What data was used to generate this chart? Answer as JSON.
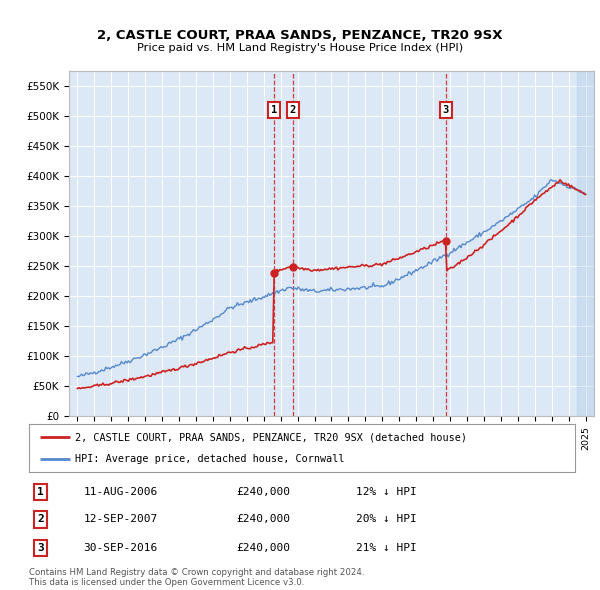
{
  "title1": "2, CASTLE COURT, PRAA SANDS, PENZANCE, TR20 9SX",
  "title2": "Price paid vs. HM Land Registry's House Price Index (HPI)",
  "background_color": "#ffffff",
  "plot_bg_color": "#dce8f5",
  "grid_color": "#ffffff",
  "hpi_color": "#5588cc",
  "price_color": "#cc2222",
  "transactions": [
    {
      "label": "1",
      "date": "11-AUG-2006",
      "price": 240000,
      "hpi_pct": "12% ↓ HPI",
      "x": 2006.61
    },
    {
      "label": "2",
      "date": "12-SEP-2007",
      "price": 240000,
      "hpi_pct": "20% ↓ HPI",
      "x": 2007.7
    },
    {
      "label": "3",
      "date": "30-SEP-2016",
      "price": 240000,
      "hpi_pct": "21% ↓ HPI",
      "x": 2016.75
    }
  ],
  "legend_entries": [
    "2, CASTLE COURT, PRAA SANDS, PENZANCE, TR20 9SX (detached house)",
    "HPI: Average price, detached house, Cornwall"
  ],
  "footer1": "Contains HM Land Registry data © Crown copyright and database right 2024.",
  "footer2": "This data is licensed under the Open Government Licence v3.0.",
  "ylim_max": 575000,
  "xlim_start": 1994.5,
  "xlim_end": 2025.5
}
